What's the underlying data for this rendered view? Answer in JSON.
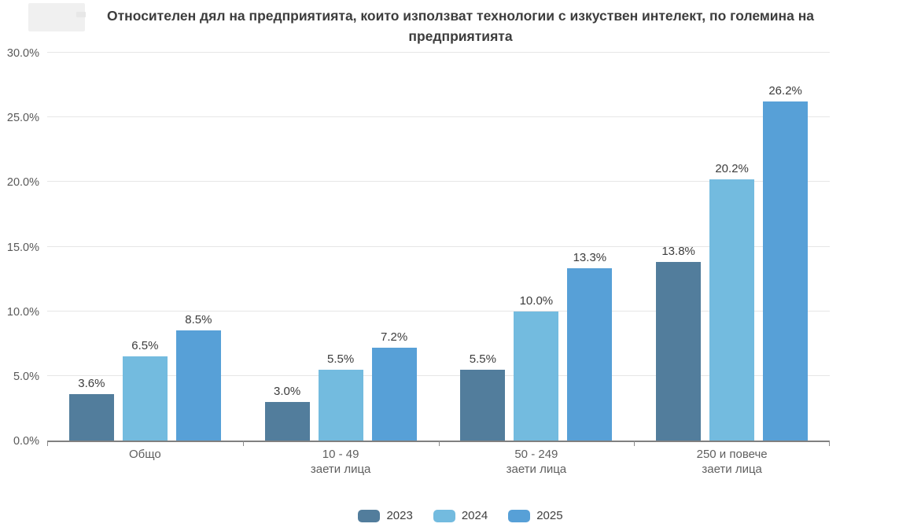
{
  "title": "Относителен дял на предприятията, които използват технологии с изкуствен интелект, по големина на предприятията",
  "chart_data": {
    "type": "bar",
    "title": "Относителен дял на предприятията, които използват технологии с изкуствен интелект, по големина на предприятията",
    "categories": [
      "Общо",
      "10 - 49 заети лица",
      "50 - 249 заети лица",
      "250 и повече заети лица"
    ],
    "category_lines": [
      [
        "Общо"
      ],
      [
        "10 - 49",
        "заети лица"
      ],
      [
        "50 - 249",
        "заети лица"
      ],
      [
        "250 и повече",
        "заети лица"
      ]
    ],
    "series": [
      {
        "name": "2023",
        "color": "#527d9c",
        "values": [
          3.6,
          3.0,
          5.5,
          13.8
        ],
        "labels": [
          "3.6%",
          "3.0%",
          "5.5%",
          "13.8%"
        ]
      },
      {
        "name": "2024",
        "color": "#73bbdf",
        "values": [
          6.5,
          5.5,
          10.0,
          20.2
        ],
        "labels": [
          "6.5%",
          "5.5%",
          "10.0%",
          "20.2%"
        ]
      },
      {
        "name": "2025",
        "color": "#57a0d7",
        "values": [
          8.5,
          7.2,
          13.3,
          26.2
        ],
        "labels": [
          "8.5%",
          "7.2%",
          "13.3%",
          "26.2%"
        ]
      }
    ],
    "ylim": [
      0,
      30
    ],
    "y_ticks": [
      {
        "label": "0.0%",
        "value": 0
      },
      {
        "label": "5.0%",
        "value": 5
      },
      {
        "label": "10.0%",
        "value": 10
      },
      {
        "label": "15.0%",
        "value": 15
      },
      {
        "label": "20.0%",
        "value": 20
      },
      {
        "label": "25.0%",
        "value": 25
      },
      {
        "label": "30.0%",
        "value": 30
      }
    ],
    "grid": true,
    "value_labels": true,
    "legend_position": "bottom"
  },
  "style": {
    "background": "#ffffff",
    "axis_color": "#808080",
    "grid_color": "#e6e6e6",
    "title_color": "#3d3d3d",
    "tick_label_color": "#595959",
    "category_label_color": "#5f5f5f",
    "value_label_color": "#3c3c3c",
    "legend_label_color": "#404040"
  }
}
